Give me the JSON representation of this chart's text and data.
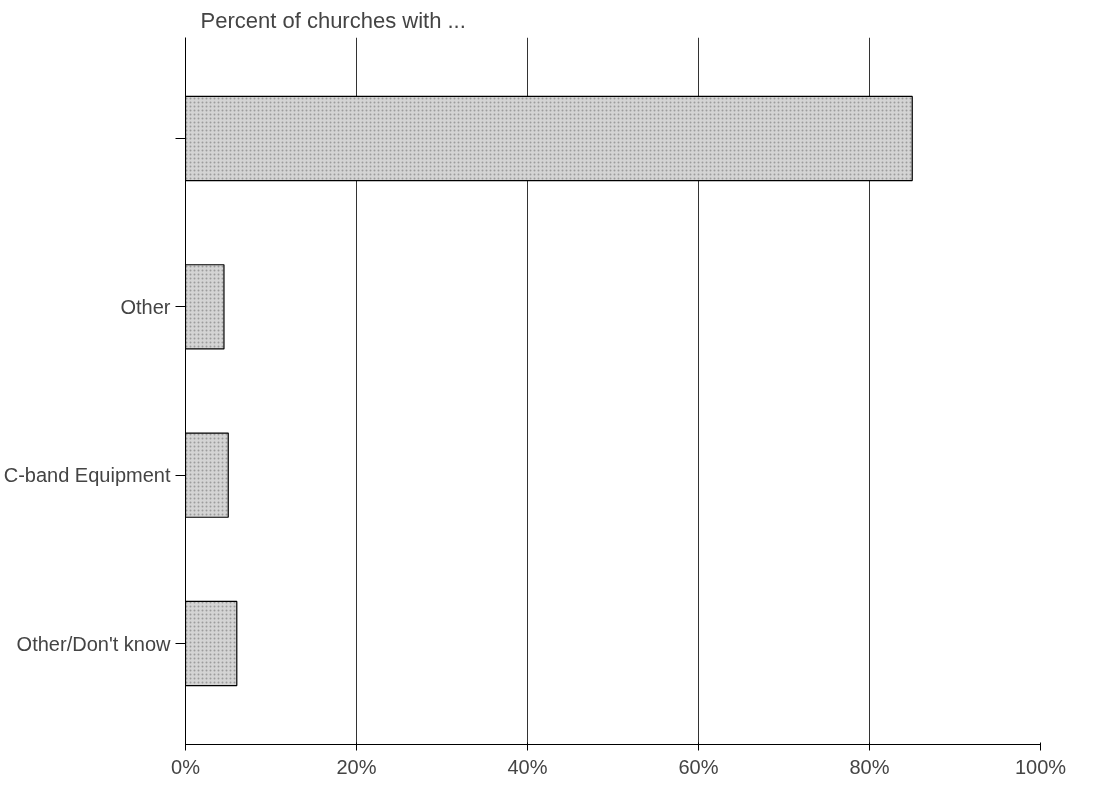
{
  "chart_data": {
    "type": "bar",
    "orientation": "horizontal",
    "title": "Percent of churches with ...",
    "categories": [
      null,
      "Other",
      "C-band Equipment",
      "Other/Don't know"
    ],
    "values": [
      85,
      4.5,
      5,
      6
    ],
    "color": "#d4d4d4",
    "xlim": [
      0,
      100
    ],
    "xticks": [
      {
        "value": 0,
        "label": "0%"
      },
      {
        "value": 20,
        "label": "20%"
      },
      {
        "value": 40,
        "label": "40%"
      },
      {
        "value": 60,
        "label": "60%"
      },
      {
        "value": 80,
        "label": "80%"
      },
      {
        "value": 100,
        "label": "100%"
      }
    ],
    "grid": "x"
  }
}
